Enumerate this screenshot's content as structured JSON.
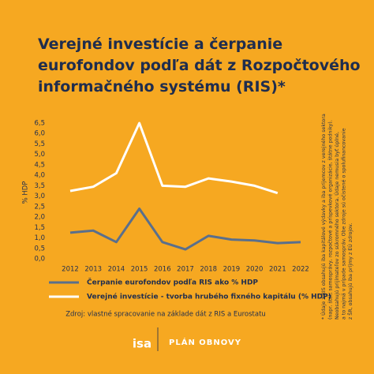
{
  "chart_data": {
    "type": "line",
    "title_lines": [
      "Verejné investície a čerpanie",
      "eurofondov podľa dát z Rozpočtového",
      "informačného systému (RIS)*"
    ],
    "ylabel": "% HDP",
    "categories": [
      "2012",
      "2013",
      "2014",
      "2015",
      "2016",
      "2017",
      "2018",
      "2019",
      "2020",
      "2021",
      "2022"
    ],
    "series": [
      {
        "name": "Čerpanie eurofondov podľa RIS ako % HDP",
        "color": "#5a6f8c",
        "values": [
          1.25,
          1.35,
          0.8,
          2.4,
          0.8,
          0.45,
          1.1,
          0.92,
          0.88,
          0.75,
          0.8
        ]
      },
      {
        "name": "Verejné investície - tvorba hrubého fixného kapitálu (% HDP)",
        "color": "#ffffff",
        "values": [
          3.25,
          3.45,
          4.1,
          6.5,
          3.5,
          3.45,
          3.85,
          3.7,
          3.5,
          3.15,
          null
        ]
      }
    ],
    "ylim": [
      0,
      6.5
    ],
    "yticks": [
      {
        "value": 0,
        "label": "0,0"
      },
      {
        "value": 0.5,
        "label": "0,5"
      },
      {
        "value": 1,
        "label": "1,0"
      },
      {
        "value": 1.5,
        "label": "1,5"
      },
      {
        "value": 2,
        "label": "2,0"
      },
      {
        "value": 2.5,
        "label": "2,5"
      },
      {
        "value": 3,
        "label": "3,0"
      },
      {
        "value": 3.5,
        "label": "3,5"
      },
      {
        "value": 4,
        "label": "4,0"
      },
      {
        "value": 4.5,
        "label": "4,5"
      },
      {
        "value": 5,
        "label": "5,0"
      },
      {
        "value": 5.5,
        "label": "5,5"
      },
      {
        "value": 6,
        "label": "6,0"
      },
      {
        "value": 6.5,
        "label": "6,5"
      }
    ],
    "source": "Zdroj: vlastné spracovanie na základe dát z RIS a Eurostatu",
    "note_lines": [
      "* Údaje z RIS obsahujú iba kapitálové výdavky a iba prijemcov z verejného sektora",
      "(napr. štát, samosprávy, rozpočtové a príspevkové organizácie, štátne podniky).",
      "Neobsahujú prijímateľov zo súkromného sektora. Údaje nemusia byť úplné,",
      "a to najmä v prípade samospráv. Obe zdroje sú očistené o spolufinancovanie",
      "z ŠR, obsahujú iba príjmy z EÚ zdrojov."
    ],
    "logo_left": "isa",
    "logo_right": "PLÁN OBNOVY"
  }
}
